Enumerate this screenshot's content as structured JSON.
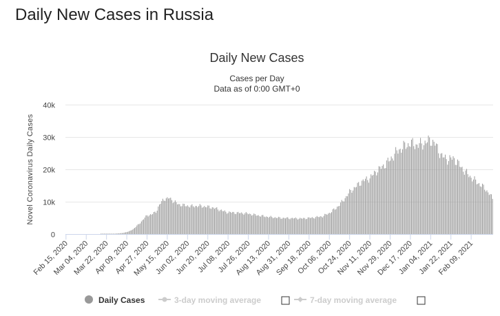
{
  "page": {
    "title": "Daily New Cases in Russia"
  },
  "chart_data": {
    "type": "bar",
    "title": "Daily New Cases",
    "subtitle_lines": [
      "Cases per Day",
      "Data as of 0:00 GMT+0"
    ],
    "ylabel": "Novel Coronavirus Daily Cases",
    "xlabel": "",
    "ylim": [
      0,
      40000
    ],
    "yticks": [
      0,
      10000,
      20000,
      30000,
      40000
    ],
    "ytick_labels": [
      "0",
      "10k",
      "20k",
      "30k",
      "40k"
    ],
    "x_tick_labels": [
      "Feb 15, 2020",
      "Mar 04, 2020",
      "Mar 22, 2020",
      "Apr 09, 2020",
      "Apr 27, 2020",
      "May 15, 2020",
      "Jun 02, 2020",
      "Jun 20, 2020",
      "Jul 08, 2020",
      "Jul 26, 2020",
      "Aug 13, 2020",
      "Aug 31, 2020",
      "Sep 18, 2020",
      "Oct 06, 2020",
      "Oct 24, 2020",
      "Nov 11, 2020",
      "Nov 29, 2020",
      "Dec 17, 2020",
      "Jan 04, 2021",
      "Jan 22, 2021",
      "Feb 09, 2021"
    ],
    "first_date": "Feb 15, 2020",
    "day_count": 380,
    "tick_interval_days": 18,
    "series": [
      {
        "name": "Daily Cases",
        "color": "#999999",
        "approx_curve_keypoints": [
          [
            0,
            0
          ],
          [
            30,
            0
          ],
          [
            40,
            40
          ],
          [
            50,
            300
          ],
          [
            56,
            800
          ],
          [
            60,
            1600
          ],
          [
            66,
            3500
          ],
          [
            72,
            5800
          ],
          [
            76,
            6000
          ],
          [
            80,
            7000
          ],
          [
            84,
            9500
          ],
          [
            86,
            10500
          ],
          [
            88,
            11000
          ],
          [
            90,
            10800
          ],
          [
            92,
            11200
          ],
          [
            96,
            10000
          ],
          [
            100,
            9200
          ],
          [
            106,
            8800
          ],
          [
            112,
            8600
          ],
          [
            118,
            8700
          ],
          [
            124,
            8500
          ],
          [
            130,
            8200
          ],
          [
            136,
            7600
          ],
          [
            142,
            6800
          ],
          [
            150,
            6600
          ],
          [
            160,
            6400
          ],
          [
            170,
            5800
          ],
          [
            180,
            5300
          ],
          [
            190,
            5000
          ],
          [
            200,
            4900
          ],
          [
            210,
            4800
          ],
          [
            220,
            5100
          ],
          [
            228,
            5500
          ],
          [
            234,
            6500
          ],
          [
            240,
            8000
          ],
          [
            246,
            10200
          ],
          [
            252,
            13000
          ],
          [
            258,
            14800
          ],
          [
            264,
            16500
          ],
          [
            270,
            17300
          ],
          [
            276,
            19500
          ],
          [
            282,
            21000
          ],
          [
            288,
            23000
          ],
          [
            294,
            25500
          ],
          [
            300,
            27000
          ],
          [
            306,
            28000
          ],
          [
            312,
            27500
          ],
          [
            318,
            28000
          ],
          [
            322,
            28800
          ],
          [
            324,
            29000
          ],
          [
            328,
            27800
          ],
          [
            334,
            24000
          ],
          [
            340,
            23000
          ],
          [
            344,
            23500
          ],
          [
            348,
            22000
          ],
          [
            354,
            19500
          ],
          [
            360,
            17500
          ],
          [
            366,
            15800
          ],
          [
            372,
            14200
          ],
          [
            376,
            12500
          ],
          [
            379,
            11000
          ]
        ]
      },
      {
        "name": "3-day moving average",
        "color": "#cccccc",
        "hidden": true
      },
      {
        "name": "7-day moving average",
        "color": "#cccccc",
        "hidden": true
      }
    ],
    "legend": [
      "Daily Cases",
      "3-day moving average",
      "7-day moving average"
    ],
    "legend_position": "bottom",
    "grid": true
  }
}
